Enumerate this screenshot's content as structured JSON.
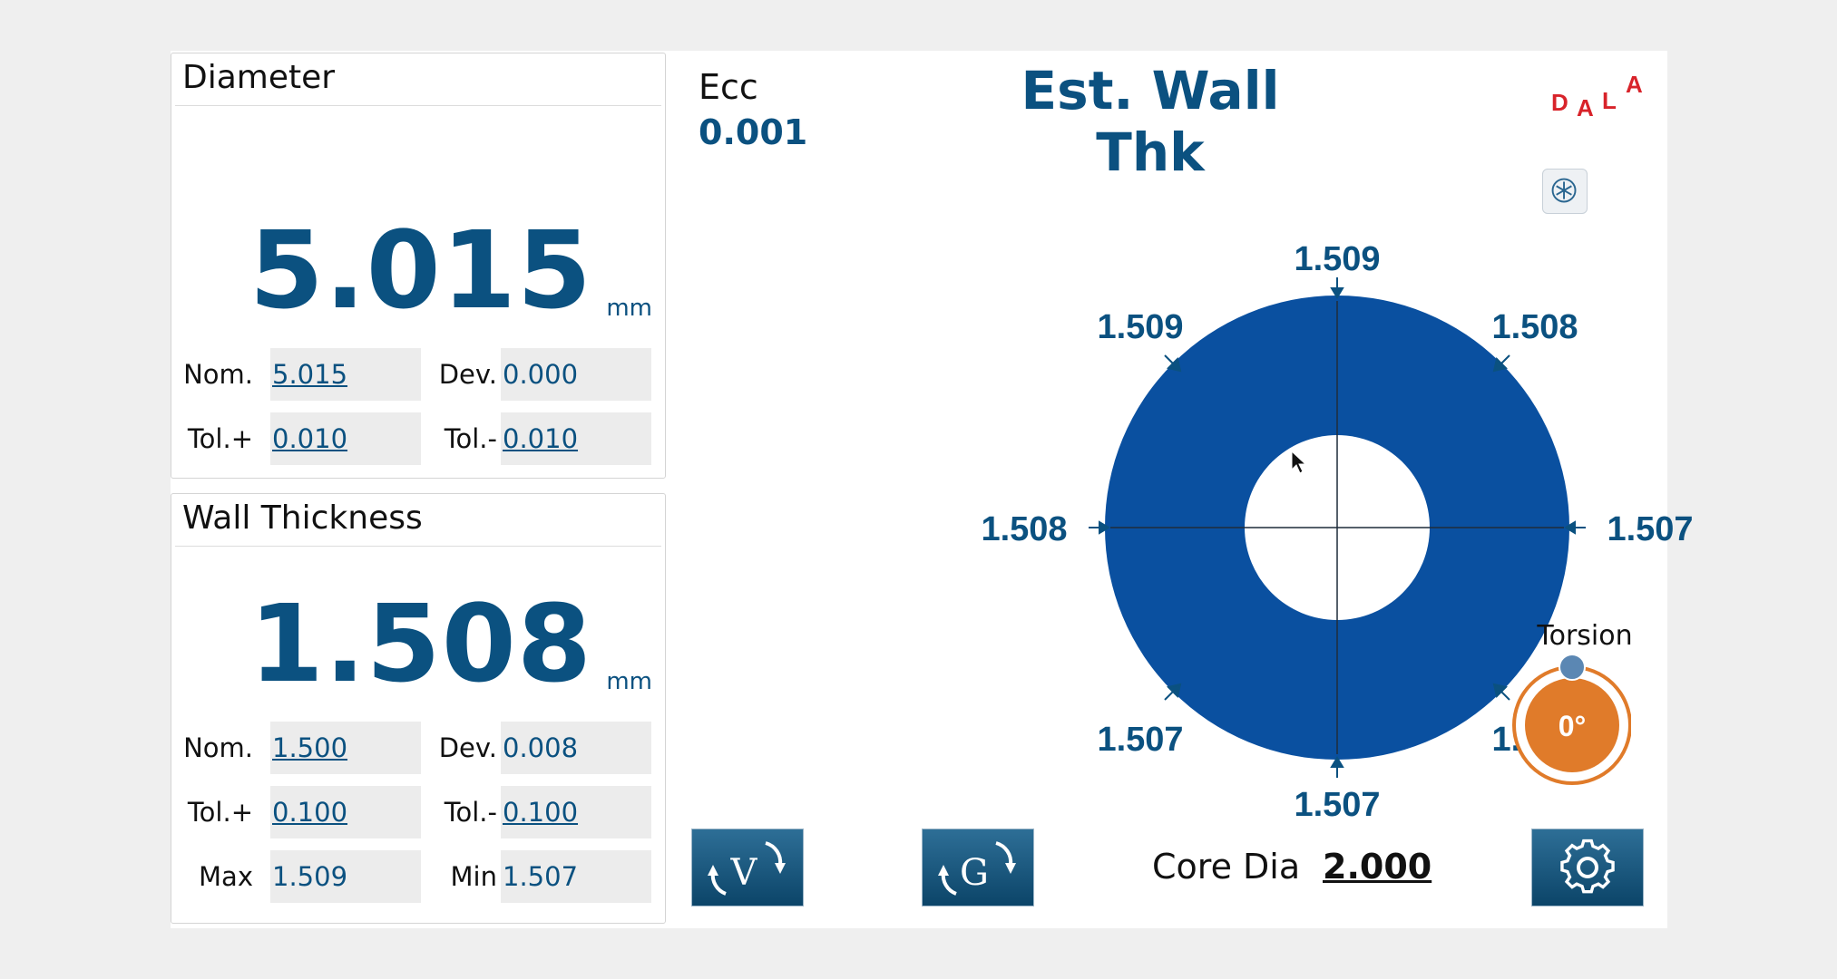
{
  "diameter": {
    "title": "Diameter",
    "value": "5.015",
    "unit": "mm",
    "nom_label": "Nom.",
    "nom_value": "5.015",
    "dev_label": "Dev.",
    "dev_value": "0.000",
    "tolp_label": "Tol.+",
    "tolp_value": "0.010",
    "tolm_label": "Tol.-",
    "tolm_value": "0.010"
  },
  "wall": {
    "title": "Wall Thickness",
    "value": "1.508",
    "unit": "mm",
    "nom_label": "Nom.",
    "nom_value": "1.500",
    "dev_label": "Dev.",
    "dev_value": "0.008",
    "tolp_label": "Tol.+",
    "tolp_value": "0.100",
    "tolm_label": "Tol.-",
    "tolm_value": "0.100",
    "max_label": "Max",
    "max_value": "1.509",
    "min_label": "Min",
    "min_value": "1.507"
  },
  "ecc": {
    "label": "Ecc",
    "value": "0.001"
  },
  "main_title": "Est. Wall Thk",
  "logo": {
    "text": "DALA",
    "color": "#d8232a"
  },
  "readings": {
    "top": "1.509",
    "top_left": "1.509",
    "top_right": "1.508",
    "left": "1.508",
    "right": "1.507",
    "bottom_left": "1.507",
    "bottom_right": "1.507",
    "bottom": "1.507"
  },
  "ring_color": "#0a50a0",
  "accent_color": "#0b5180",
  "torsion": {
    "label": "Torsion",
    "value": "0°",
    "color": "#e07b2a"
  },
  "core": {
    "label": "Core Dia",
    "value": "2.000"
  },
  "buttons": {
    "v_label": "V",
    "g_label": "G"
  },
  "icons": {
    "snowflake": "snowflake-icon",
    "settings": "gear-icon",
    "rotate_v": "rotate-v-icon",
    "rotate_g": "rotate-g-icon"
  }
}
